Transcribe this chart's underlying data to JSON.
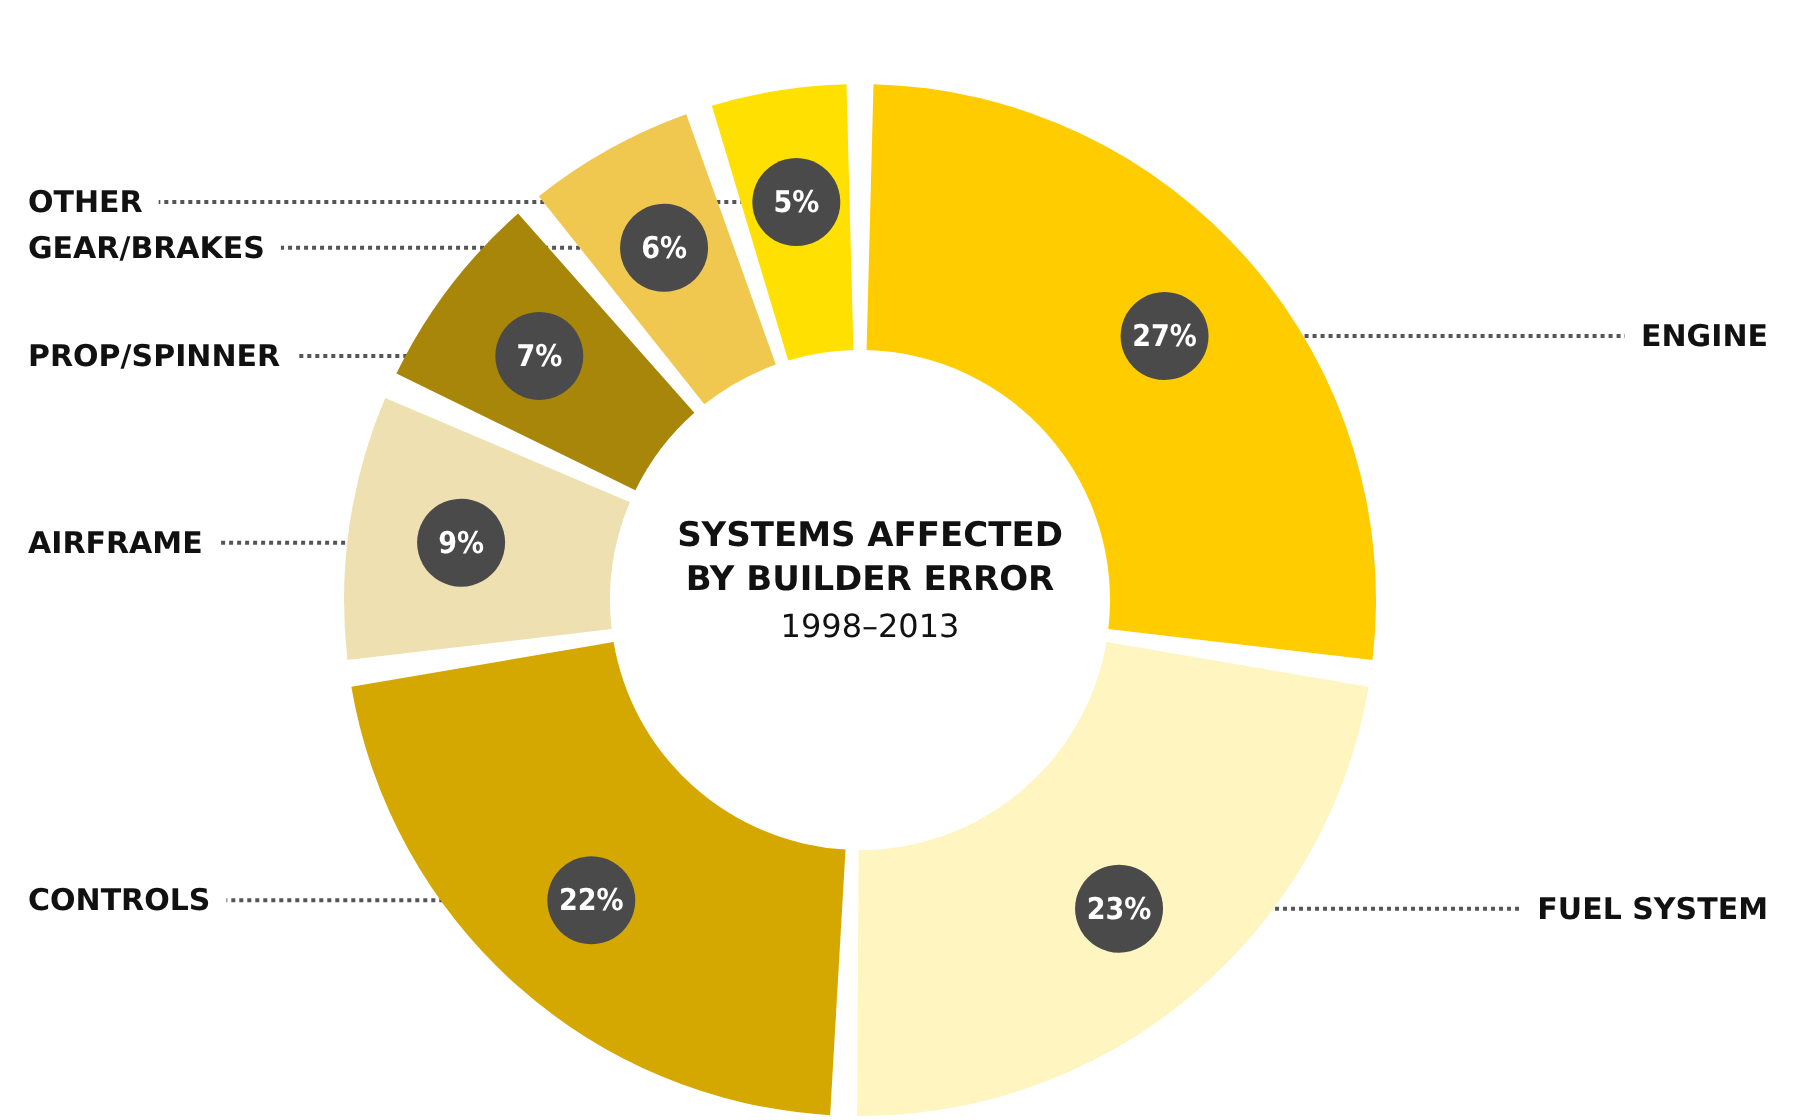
{
  "chart_data": {
    "type": "donut",
    "title": "SYSTEMS AFFECTED\nBY BUILDER ERROR",
    "subtitle": "1998–2013",
    "categories": [
      "ENGINE",
      "FUEL SYSTEM",
      "CONTROLS",
      "AIRFRAME",
      "PROP/SPINNER",
      "GEAR/BRAKES",
      "OTHER"
    ],
    "values": [
      27,
      23,
      22,
      9,
      7,
      6,
      5
    ],
    "colors": [
      "#ffcc00",
      "#fff5c0",
      "#d4a800",
      "#eee0b0",
      "#a8860a",
      "#f0c850",
      "#ffe000"
    ],
    "value_labels": [
      "27%",
      "23%",
      "22%",
      "9%",
      "7%",
      "6%",
      "5%"
    ],
    "legend": false
  }
}
